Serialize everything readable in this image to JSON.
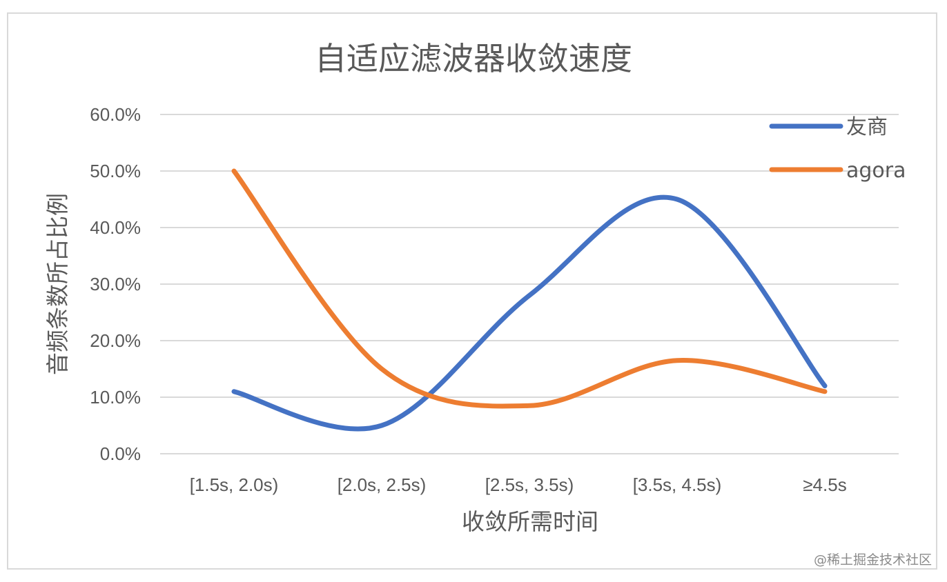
{
  "chart_data": {
    "type": "line",
    "title": "自适应滤波器收敛速度",
    "xlabel": "收敛所需时间",
    "ylabel": "音频条数所占比例",
    "categories": [
      "[1.5s, 2.0s)",
      "[2.0s, 2.5s)",
      "[2.5s, 3.5s)",
      "[3.5s, 4.5s)",
      "≥4.5s"
    ],
    "series": [
      {
        "name": "友商",
        "color": "#4472C4",
        "values": [
          11.0,
          5.0,
          28.0,
          45.0,
          12.0
        ]
      },
      {
        "name": "agora",
        "color": "#ED7D31",
        "values": [
          50.0,
          15.0,
          8.5,
          16.5,
          11.0
        ]
      }
    ],
    "ylim": [
      0,
      60
    ],
    "yticks": [
      "0.0%",
      "10.0%",
      "20.0%",
      "30.0%",
      "40.0%",
      "50.0%",
      "60.0%"
    ],
    "smooth": true,
    "grid": true,
    "legend_position": "top-right"
  },
  "watermark": "@稀土掘金技术社区"
}
